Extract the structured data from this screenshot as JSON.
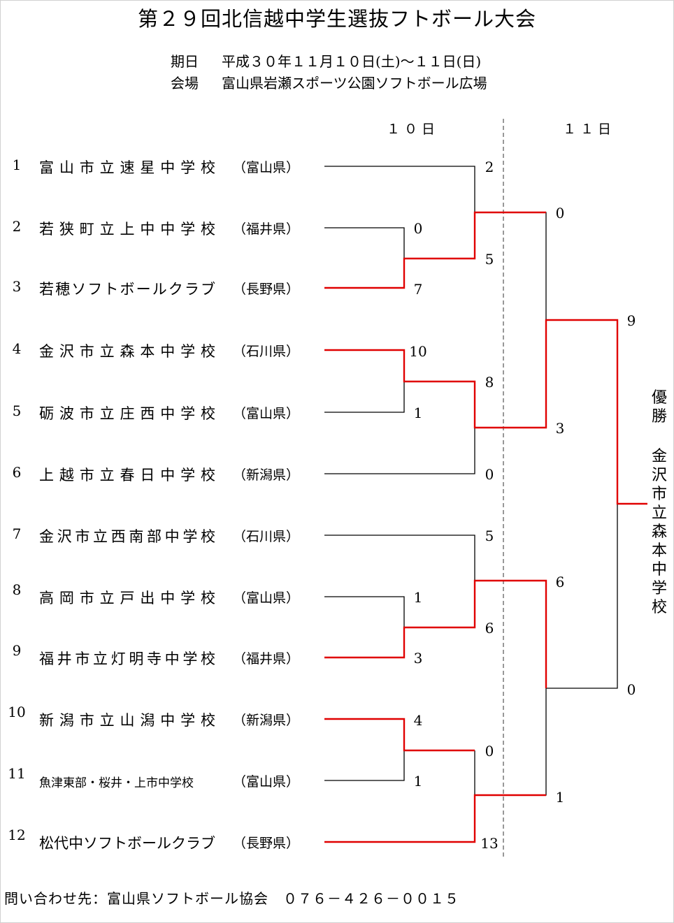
{
  "title": "第２９回北信越中学生選抜フトボール大会",
  "dates_label": "期日",
  "dates_value": "平成３０年１１月１０日(土)～１１日(日)",
  "venue_label": "会場",
  "venue_value": "富山県岩瀬スポーツ公園ソフトボール広場",
  "day1": "１０日",
  "day2": "１１日",
  "teams": [
    {
      "seed": "1",
      "name": "富山市立速星中学校",
      "pref": "（富山県）"
    },
    {
      "seed": "2",
      "name": "若狭町立上中中学校",
      "pref": "（福井県）"
    },
    {
      "seed": "3",
      "name": "若穂ソフトボールクラブ",
      "pref": "（長野県）"
    },
    {
      "seed": "4",
      "name": "金沢市立森本中学校",
      "pref": "（石川県）"
    },
    {
      "seed": "5",
      "name": "砺波市立庄西中学校",
      "pref": "（富山県）"
    },
    {
      "seed": "6",
      "name": "上越市立春日中学校",
      "pref": "（新潟県）"
    },
    {
      "seed": "7",
      "name": "金沢市立西南部中学校",
      "pref": "（石川県）"
    },
    {
      "seed": "8",
      "name": "高岡市立戸出中学校",
      "pref": "（富山県）"
    },
    {
      "seed": "9",
      "name": "福井市立灯明寺中学校",
      "pref": "（福井県）"
    },
    {
      "seed": "10",
      "name": "新潟市立山潟中学校",
      "pref": "（新潟県）"
    },
    {
      "seed": "11",
      "name": "魚津東部・桜井・上市中学校",
      "pref": "（富山県）"
    },
    {
      "seed": "12",
      "name": "松代中ソフトボールクラブ",
      "pref": "（長野県）"
    }
  ],
  "scores": {
    "r1": [
      "0",
      "7",
      "10",
      "1",
      "1",
      "3",
      "4",
      "1"
    ],
    "r2": [
      "2",
      "5",
      "8",
      "0",
      "5",
      "6",
      "0",
      "13"
    ],
    "sf": [
      "0",
      "3",
      "6",
      "1"
    ],
    "final": [
      "9",
      "0"
    ]
  },
  "champion_label": "優勝",
  "champion_name": "金沢市立森本中学校",
  "footer": "問い合わせ先：富山県ソフトボール協会　０７６－４２６－００１５",
  "colors": {
    "win": "#e00000",
    "lose": "#000000",
    "divider": "#555555"
  }
}
